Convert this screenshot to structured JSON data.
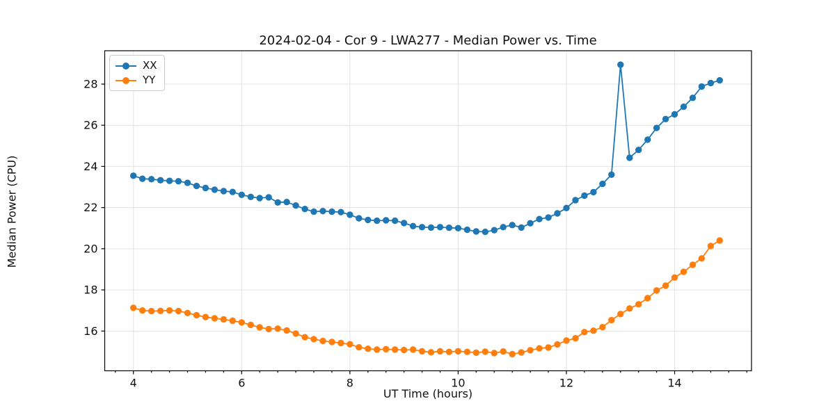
{
  "figure": {
    "title": "2024-02-04 - Cor 9 - LWA277 - Median Power vs. Time",
    "xlabel": "UT Time (hours)",
    "ylabel": "Median Power (CPU)",
    "background": "#ffffff"
  },
  "legend": {
    "position": "upper-left",
    "items": [
      {
        "label": "XX",
        "color": "#1f77b4"
      },
      {
        "label": "YY",
        "color": "#ff7f0e"
      }
    ]
  },
  "chart_data": {
    "type": "line",
    "title": "2024-02-04 - Cor 9 - LWA277 - Median Power vs. Time",
    "xlabel": "UT Time (hours)",
    "ylabel": "Median Power (CPU)",
    "xlim": [
      3.47,
      15.42
    ],
    "ylim": [
      14.07,
      29.62
    ],
    "xticks": [
      4,
      6,
      8,
      10,
      12,
      14
    ],
    "yticks": [
      16,
      18,
      20,
      22,
      24,
      26,
      28
    ],
    "x_minor_tick_step": 0.333,
    "grid": true,
    "grid_color": "#e3e3e3",
    "marker": "circle",
    "line_style": "solid",
    "legend_position": "upper-left",
    "x_start": 4.0,
    "x_step": 0.167,
    "x": [
      4.0,
      4.167,
      4.333,
      4.5,
      4.667,
      4.833,
      5.0,
      5.167,
      5.333,
      5.5,
      5.667,
      5.833,
      6.0,
      6.167,
      6.333,
      6.5,
      6.667,
      6.833,
      7.0,
      7.167,
      7.333,
      7.5,
      7.667,
      7.833,
      8.0,
      8.167,
      8.333,
      8.5,
      8.667,
      8.833,
      9.0,
      9.167,
      9.333,
      9.5,
      9.667,
      9.833,
      10.0,
      10.167,
      10.333,
      10.5,
      10.667,
      10.833,
      11.0,
      11.167,
      11.333,
      11.5,
      11.667,
      11.833,
      12.0,
      12.167,
      12.333,
      12.5,
      12.667,
      12.833,
      13.0,
      13.167,
      13.333,
      13.5,
      13.667,
      13.833,
      14.0,
      14.167,
      14.333,
      14.5,
      14.667,
      14.833
    ],
    "series": [
      {
        "name": "XX",
        "color": "#1f77b4",
        "values": [
          23.55,
          23.4,
          23.38,
          23.33,
          23.3,
          23.28,
          23.2,
          23.05,
          22.95,
          22.87,
          22.8,
          22.76,
          22.62,
          22.52,
          22.46,
          22.5,
          22.25,
          22.27,
          22.1,
          21.93,
          21.8,
          21.83,
          21.8,
          21.78,
          21.65,
          21.48,
          21.4,
          21.36,
          21.38,
          21.36,
          21.25,
          21.1,
          21.05,
          21.03,
          21.05,
          21.02,
          21.0,
          20.92,
          20.84,
          20.82,
          20.9,
          21.05,
          21.15,
          21.03,
          21.24,
          21.44,
          21.52,
          21.72,
          21.98,
          22.36,
          22.58,
          22.75,
          23.15,
          23.6,
          28.94,
          24.42,
          24.8,
          25.3,
          25.87,
          26.3,
          26.53,
          26.9,
          27.33,
          27.88,
          28.05,
          28.18
        ]
      },
      {
        "name": "YY",
        "color": "#ff7f0e",
        "values": [
          17.13,
          17.0,
          16.97,
          16.98,
          17.0,
          16.97,
          16.88,
          16.77,
          16.68,
          16.62,
          16.57,
          16.5,
          16.42,
          16.3,
          16.18,
          16.1,
          16.12,
          16.03,
          15.88,
          15.7,
          15.61,
          15.52,
          15.47,
          15.42,
          15.36,
          15.21,
          15.14,
          15.1,
          15.12,
          15.1,
          15.08,
          15.1,
          15.02,
          14.97,
          15.02,
          14.99,
          15.02,
          14.99,
          14.95,
          15.0,
          14.93,
          15.01,
          14.88,
          14.96,
          15.07,
          15.16,
          15.2,
          15.35,
          15.54,
          15.65,
          15.95,
          16.02,
          16.19,
          16.53,
          16.83,
          17.1,
          17.3,
          17.6,
          17.97,
          18.21,
          18.6,
          18.88,
          19.22,
          19.53,
          20.13,
          20.4
        ]
      }
    ]
  },
  "colors": {
    "series_xx": "#1f77b4",
    "series_yy": "#ff7f0e",
    "grid": "#e3e3e3",
    "spine": "#000000",
    "text": "#111111"
  }
}
